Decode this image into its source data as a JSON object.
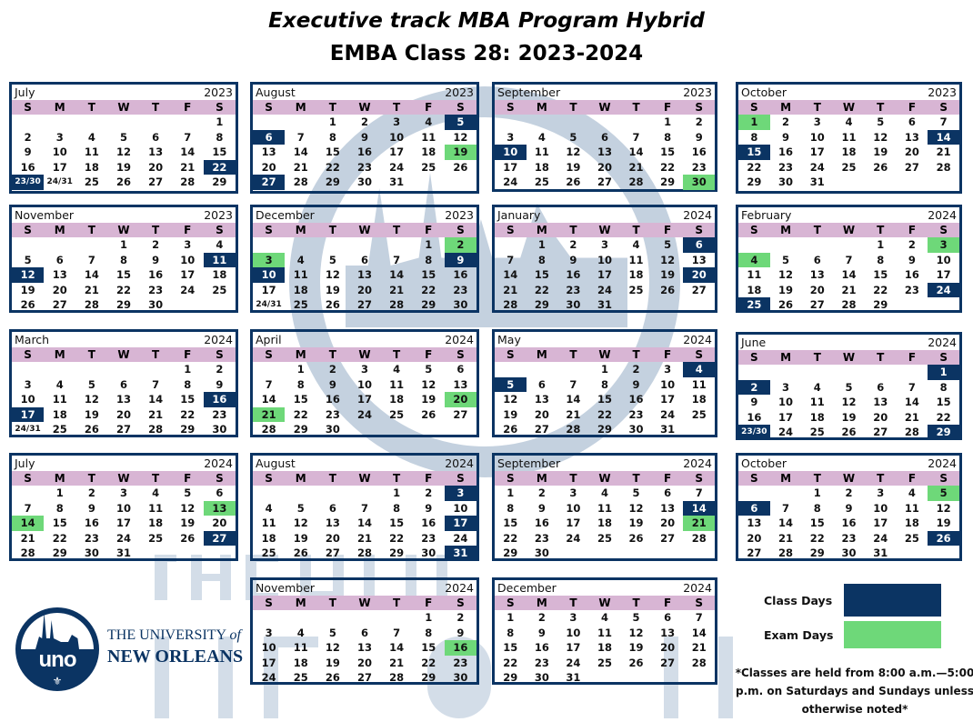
{
  "header": {
    "title": "Executive track MBA Program Hybrid",
    "subtitle": "EMBA Class 28: 2023-2024"
  },
  "weekdays": [
    "S",
    "M",
    "T",
    "W",
    "T",
    "F",
    "S"
  ],
  "colors": {
    "class_day": "#0b3463",
    "exam_day": "#6ed879",
    "weekday_bar": "#d8b5d4"
  },
  "months": [
    {
      "name": "July",
      "year": "2023",
      "weeks": [
        [
          "",
          "",
          "",
          "",
          "",
          "",
          "1"
        ],
        [
          "2",
          "3",
          "4",
          "5",
          "6",
          "7",
          "8"
        ],
        [
          "9",
          "10",
          "11",
          "12",
          "13",
          "14",
          "15"
        ],
        [
          "16",
          "17",
          "18",
          "19",
          "20",
          "21",
          "22"
        ],
        [
          "23/30",
          "24/31",
          "25",
          "26",
          "27",
          "28",
          "29"
        ]
      ],
      "class": [
        "22",
        "23/30"
      ],
      "exam": []
    },
    {
      "name": "August",
      "year": "2023",
      "weeks": [
        [
          "",
          "",
          "1",
          "2",
          "3",
          "4",
          "5"
        ],
        [
          "6",
          "7",
          "8",
          "9",
          "10",
          "11",
          "12"
        ],
        [
          "13",
          "14",
          "15",
          "16",
          "17",
          "18",
          "19"
        ],
        [
          "20",
          "21",
          "22",
          "23",
          "24",
          "25",
          "26"
        ],
        [
          "27",
          "28",
          "29",
          "30",
          "31",
          "",
          ""
        ]
      ],
      "class": [
        "5",
        "6",
        "27"
      ],
      "exam": [
        "19"
      ]
    },
    {
      "name": "September",
      "year": "2023",
      "weeks": [
        [
          "",
          "",
          "",
          "",
          "",
          "1",
          "2"
        ],
        [
          "3",
          "4",
          "5",
          "6",
          "7",
          "8",
          "9"
        ],
        [
          "10",
          "11",
          "12",
          "13",
          "14",
          "15",
          "16"
        ],
        [
          "17",
          "18",
          "19",
          "20",
          "21",
          "22",
          "23"
        ],
        [
          "24",
          "25",
          "26",
          "27",
          "28",
          "29",
          "30"
        ]
      ],
      "class": [
        "10"
      ],
      "exam": [
        "30"
      ]
    },
    {
      "name": "October",
      "year": "2023",
      "weeks": [
        [
          "1",
          "2",
          "3",
          "4",
          "5",
          "6",
          "7"
        ],
        [
          "8",
          "9",
          "10",
          "11",
          "12",
          "13",
          "14"
        ],
        [
          "15",
          "16",
          "17",
          "18",
          "19",
          "20",
          "21"
        ],
        [
          "22",
          "23",
          "24",
          "25",
          "26",
          "27",
          "28"
        ],
        [
          "29",
          "30",
          "31",
          "",
          "",
          "",
          ""
        ]
      ],
      "class": [
        "14",
        "15"
      ],
      "exam": [
        "1"
      ]
    },
    {
      "name": "November",
      "year": "2023",
      "weeks": [
        [
          "",
          "",
          "",
          "1",
          "2",
          "3",
          "4"
        ],
        [
          "5",
          "6",
          "7",
          "8",
          "9",
          "10",
          "11"
        ],
        [
          "12",
          "13",
          "14",
          "15",
          "16",
          "17",
          "18"
        ],
        [
          "19",
          "20",
          "21",
          "22",
          "23",
          "24",
          "25"
        ],
        [
          "26",
          "27",
          "28",
          "29",
          "30",
          "",
          ""
        ]
      ],
      "class": [
        "11",
        "12"
      ],
      "exam": []
    },
    {
      "name": "December",
      "year": "2023",
      "weeks": [
        [
          "",
          "",
          "",
          "",
          "",
          "1",
          "2"
        ],
        [
          "3",
          "4",
          "5",
          "6",
          "7",
          "8",
          "9"
        ],
        [
          "10",
          "11",
          "12",
          "13",
          "14",
          "15",
          "16"
        ],
        [
          "17",
          "18",
          "19",
          "20",
          "21",
          "22",
          "23"
        ],
        [
          "24/31",
          "25",
          "26",
          "27",
          "28",
          "29",
          "30"
        ]
      ],
      "class": [
        "9",
        "10"
      ],
      "exam": [
        "2",
        "3"
      ]
    },
    {
      "name": "January",
      "year": "2024",
      "weeks": [
        [
          "",
          "1",
          "2",
          "3",
          "4",
          "5",
          "6"
        ],
        [
          "7",
          "8",
          "9",
          "10",
          "11",
          "12",
          "13"
        ],
        [
          "14",
          "15",
          "16",
          "17",
          "18",
          "19",
          "20"
        ],
        [
          "21",
          "22",
          "23",
          "24",
          "25",
          "26",
          "27"
        ],
        [
          "28",
          "29",
          "30",
          "31",
          "",
          "",
          ""
        ]
      ],
      "class": [
        "6",
        "20"
      ],
      "exam": []
    },
    {
      "name": "February",
      "year": "2024",
      "weeks": [
        [
          "",
          "",
          "",
          "",
          "1",
          "2",
          "3"
        ],
        [
          "4",
          "5",
          "6",
          "7",
          "8",
          "9",
          "10"
        ],
        [
          "11",
          "12",
          "13",
          "14",
          "15",
          "16",
          "17"
        ],
        [
          "18",
          "19",
          "20",
          "21",
          "22",
          "23",
          "24"
        ],
        [
          "25",
          "26",
          "27",
          "28",
          "29",
          "",
          ""
        ]
      ],
      "class": [
        "24",
        "25"
      ],
      "exam": [
        "3",
        "4"
      ]
    },
    {
      "name": "March",
      "year": "2024",
      "weeks": [
        [
          "",
          "",
          "",
          "",
          "",
          "1",
          "2"
        ],
        [
          "3",
          "4",
          "5",
          "6",
          "7",
          "8",
          "9"
        ],
        [
          "10",
          "11",
          "12",
          "13",
          "14",
          "15",
          "16"
        ],
        [
          "17",
          "18",
          "19",
          "20",
          "21",
          "22",
          "23"
        ],
        [
          "24/31",
          "25",
          "26",
          "27",
          "28",
          "29",
          "30"
        ]
      ],
      "class": [
        "16",
        "17"
      ],
      "exam": []
    },
    {
      "name": "April",
      "year": "2024",
      "weeks": [
        [
          "",
          "1",
          "2",
          "3",
          "4",
          "5",
          "6"
        ],
        [
          "7",
          "8",
          "9",
          "10",
          "11",
          "12",
          "13"
        ],
        [
          "14",
          "15",
          "16",
          "17",
          "18",
          "19",
          "20"
        ],
        [
          "21",
          "22",
          "23",
          "24",
          "25",
          "26",
          "27"
        ],
        [
          "28",
          "29",
          "30",
          "",
          "",
          "",
          ""
        ]
      ],
      "class": [],
      "exam": [
        "20",
        "21"
      ]
    },
    {
      "name": "May",
      "year": "2024",
      "weeks": [
        [
          "",
          "",
          "",
          "1",
          "2",
          "3",
          "4"
        ],
        [
          "5",
          "6",
          "7",
          "8",
          "9",
          "10",
          "11"
        ],
        [
          "12",
          "13",
          "14",
          "15",
          "16",
          "17",
          "18"
        ],
        [
          "19",
          "20",
          "21",
          "22",
          "23",
          "24",
          "25"
        ],
        [
          "26",
          "27",
          "28",
          "29",
          "30",
          "31",
          ""
        ]
      ],
      "class": [
        "4",
        "5"
      ],
      "exam": []
    },
    {
      "name": "June",
      "year": "2024",
      "weeks": [
        [
          "",
          "",
          "",
          "",
          "",
          "",
          "1"
        ],
        [
          "2",
          "3",
          "4",
          "5",
          "6",
          "7",
          "8"
        ],
        [
          "9",
          "10",
          "11",
          "12",
          "13",
          "14",
          "15"
        ],
        [
          "16",
          "17",
          "18",
          "19",
          "20",
          "21",
          "22"
        ],
        [
          "23/30",
          "24",
          "25",
          "26",
          "27",
          "28",
          "29"
        ]
      ],
      "class": [
        "1",
        "2",
        "23/30",
        "29"
      ],
      "exam": []
    },
    {
      "name": "July",
      "year": "2024",
      "weeks": [
        [
          "",
          "1",
          "2",
          "3",
          "4",
          "5",
          "6"
        ],
        [
          "7",
          "8",
          "9",
          "10",
          "11",
          "12",
          "13"
        ],
        [
          "14",
          "15",
          "16",
          "17",
          "18",
          "19",
          "20"
        ],
        [
          "21",
          "22",
          "23",
          "24",
          "25",
          "26",
          "27"
        ],
        [
          "28",
          "29",
          "30",
          "31",
          "",
          "",
          ""
        ]
      ],
      "class": [
        "27"
      ],
      "exam": [
        "13",
        "14"
      ]
    },
    {
      "name": "August",
      "year": "2024",
      "weeks": [
        [
          "",
          "",
          "",
          "",
          "1",
          "2",
          "3"
        ],
        [
          "4",
          "5",
          "6",
          "7",
          "8",
          "9",
          "10"
        ],
        [
          "11",
          "12",
          "13",
          "14",
          "15",
          "16",
          "17"
        ],
        [
          "18",
          "19",
          "20",
          "21",
          "22",
          "23",
          "24"
        ],
        [
          "25",
          "26",
          "27",
          "28",
          "29",
          "30",
          "31"
        ]
      ],
      "class": [
        "3",
        "17",
        "31"
      ],
      "exam": []
    },
    {
      "name": "September",
      "year": "2024",
      "weeks": [
        [
          "1",
          "2",
          "3",
          "4",
          "5",
          "6",
          "7"
        ],
        [
          "8",
          "9",
          "10",
          "11",
          "12",
          "13",
          "14"
        ],
        [
          "15",
          "16",
          "17",
          "18",
          "19",
          "20",
          "21"
        ],
        [
          "22",
          "23",
          "24",
          "25",
          "26",
          "27",
          "28"
        ],
        [
          "29",
          "30",
          "",
          "",
          "",
          "",
          ""
        ]
      ],
      "class": [
        "14"
      ],
      "exam": [
        "21"
      ]
    },
    {
      "name": "October",
      "year": "2024",
      "weeks": [
        [
          "",
          "",
          "1",
          "2",
          "3",
          "4",
          "5"
        ],
        [
          "6",
          "7",
          "8",
          "9",
          "10",
          "11",
          "12"
        ],
        [
          "13",
          "14",
          "15",
          "16",
          "17",
          "18",
          "19"
        ],
        [
          "20",
          "21",
          "22",
          "23",
          "24",
          "25",
          "26"
        ],
        [
          "27",
          "28",
          "29",
          "30",
          "31",
          "",
          ""
        ]
      ],
      "class": [
        "6",
        "26"
      ],
      "exam": [
        "5"
      ]
    },
    {
      "name": "November",
      "year": "2024",
      "weeks": [
        [
          "",
          "",
          "",
          "",
          "",
          "1",
          "2"
        ],
        [
          "3",
          "4",
          "5",
          "6",
          "7",
          "8",
          "9"
        ],
        [
          "10",
          "11",
          "12",
          "13",
          "14",
          "15",
          "16"
        ],
        [
          "17",
          "18",
          "19",
          "20",
          "21",
          "22",
          "23"
        ],
        [
          "24",
          "25",
          "26",
          "27",
          "28",
          "29",
          "30"
        ]
      ],
      "class": [],
      "exam": [
        "16"
      ]
    },
    {
      "name": "December",
      "year": "2024",
      "weeks": [
        [
          "1",
          "2",
          "3",
          "4",
          "5",
          "6",
          "7"
        ],
        [
          "8",
          "9",
          "10",
          "11",
          "12",
          "13",
          "14"
        ],
        [
          "15",
          "16",
          "17",
          "18",
          "19",
          "20",
          "21"
        ],
        [
          "22",
          "23",
          "24",
          "25",
          "26",
          "27",
          "28"
        ],
        [
          "29",
          "30",
          "31",
          "",
          "",
          "",
          ""
        ]
      ],
      "class": [],
      "exam": []
    }
  ],
  "legend": {
    "class_days": "Class Days",
    "exam_days": "Exam Days"
  },
  "note": "*Classes are held from 8:00 a.m.—5:00 p.m. on Saturdays and Sundays unless otherwise noted*",
  "logo": {
    "mark": "uno",
    "line1": "THE UNIVERSITY",
    "line1_of": "of",
    "line2": "NEW ORLEANS"
  },
  "watermark": {
    "line1": "THE UNIVERSITY of",
    "line2": "NEW ORLEANS"
  }
}
